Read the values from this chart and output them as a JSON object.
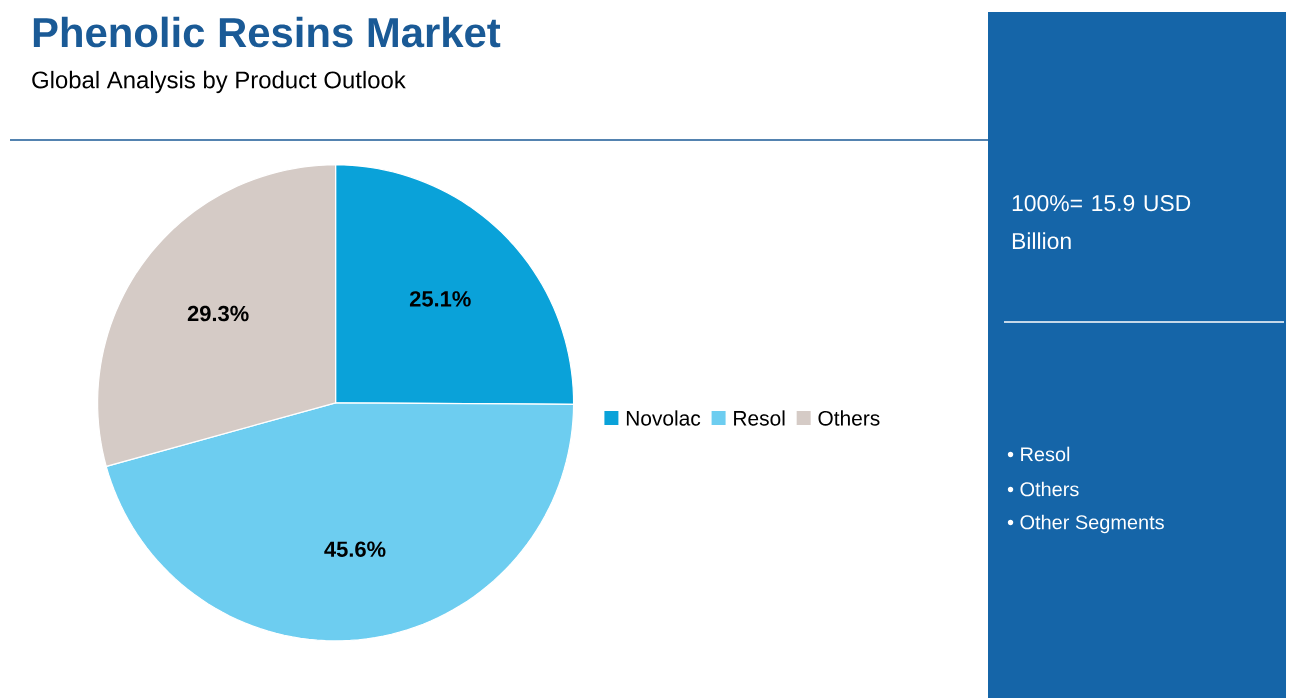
{
  "chart_data": {
    "type": "pie",
    "title": "Phenolic Resins Market",
    "subtitle": "Global Analysis by Product Outlook",
    "categories": [
      "Novolac",
      "Resol",
      "Others"
    ],
    "values": [
      25.1,
      45.6,
      29.3
    ],
    "colors": [
      "#0aa2d9",
      "#6dcdf0",
      "#d5cbc6"
    ],
    "value_labels": [
      "25.1%",
      "45.6%",
      "29.3%"
    ],
    "legend": "right",
    "annotations": [
      "100%= 15.9 USD Billion",
      "• Resol",
      "• Others",
      "• Other Segments"
    ]
  }
}
